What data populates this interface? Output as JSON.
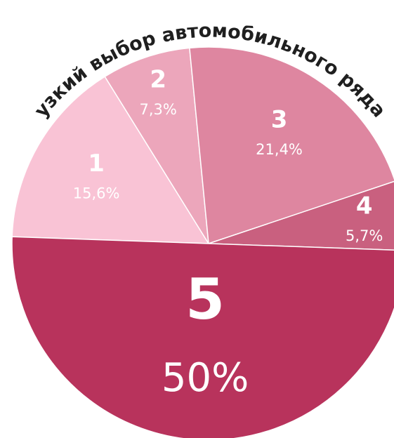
{
  "chart_data": {
    "type": "pie",
    "title": "узкий выбор автомобильного ряда",
    "categories": [
      "1",
      "2",
      "3",
      "4",
      "5"
    ],
    "values": [
      15.6,
      7.3,
      21.4,
      5.7,
      50
    ],
    "value_labels": [
      "15,6%",
      "7,3%",
      "21,4%",
      "5,7%",
      "50%"
    ],
    "colors": [
      "#f9c3d5",
      "#eca6bb",
      "#de86a0",
      "#c9607f",
      "#b8335c"
    ]
  }
}
